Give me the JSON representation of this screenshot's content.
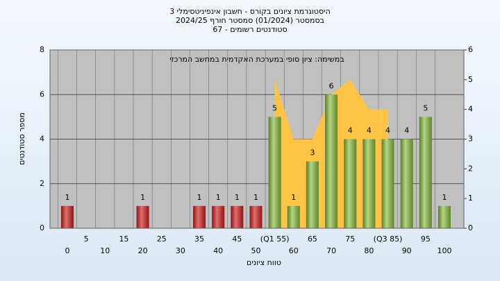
{
  "chart_data": {
    "type": "bar",
    "title": [
      "היסטוגרמת ציונים בקורס - חשבון אינפיניטסימלי 3",
      "בסמסטר  (01/2024)  סמסטר חורף 2024/25",
      "סטודנטים רשומים - 67"
    ],
    "annotation": "במשימה: ציון סופי במערכת האקדמית במחשב המרכזי",
    "xlabel": "טווח ציונים",
    "ylabel": "מספר סטודנטים",
    "categories": [
      "0",
      "5",
      "10",
      "15",
      "20",
      "25",
      "30",
      "35",
      "40",
      "45",
      "50",
      "(Q1 55)",
      "60",
      "65",
      "70",
      "75",
      "80",
      "(Q3 85)",
      "90",
      "95",
      "100"
    ],
    "values": [
      1,
      0,
      0,
      0,
      1,
      0,
      0,
      1,
      1,
      1,
      1,
      5,
      1,
      3,
      6,
      4,
      4,
      4,
      4,
      5,
      1
    ],
    "colors": [
      "#d42020",
      "#d42020",
      "#d42020",
      "#d42020",
      "#d42020",
      "#d42020",
      "#d42020",
      "#d42020",
      "#d42020",
      "#d42020",
      "#d42020",
      "#8cc040",
      "#8cc040",
      "#8cc040",
      "#8cc040",
      "#8cc040",
      "#8cc040",
      "#8cc040",
      "#8cc040",
      "#8cc040",
      "#8cc040"
    ],
    "ylim": [
      0,
      8
    ],
    "yticks": [
      0,
      2,
      4,
      6,
      8
    ],
    "y2lim": [
      0,
      6
    ],
    "y2ticks": [
      0,
      1,
      2,
      3,
      4,
      5,
      6
    ],
    "area": {
      "x": [
        55,
        60,
        65,
        70,
        75,
        80,
        85
      ],
      "values": [
        5,
        3,
        3,
        4.5,
        5,
        4,
        4
      ],
      "color": "#ffc445",
      "axis": "y2"
    },
    "xlim": [
      0,
      100
    ],
    "grid": true
  }
}
